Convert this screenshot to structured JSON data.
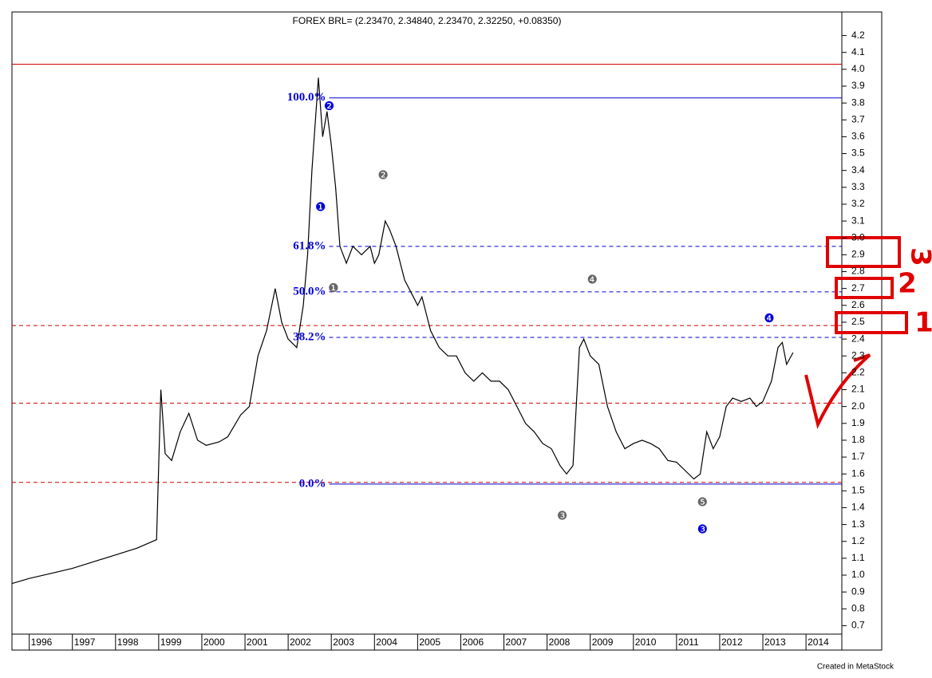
{
  "chart_data": {
    "type": "line",
    "title": "FOREX BRL= (2.23470, 2.34840, 2.23470, 2.32250, +0.08350)",
    "footer": "Created in MetaStock",
    "xlim": [
      1995.6,
      2014.83
    ],
    "ylim": [
      0.65,
      4.34
    ],
    "xticks": [
      1996,
      1997,
      1998,
      1999,
      2000,
      2001,
      2002,
      2003,
      2004,
      2005,
      2006,
      2007,
      2008,
      2009,
      2010,
      2011,
      2012,
      2013,
      2014
    ],
    "yticks": [
      0.7,
      0.8,
      0.9,
      {
        "value": 1,
        "label": "1.0"
      },
      1.1,
      1.2,
      1.3,
      1.4,
      1.5,
      1.6,
      1.7,
      1.8,
      1.9,
      {
        "value": 2,
        "label": "2.0"
      },
      2.1,
      2.2,
      2.3,
      2.4,
      2.5,
      2.6,
      2.7,
      2.8,
      2.9,
      {
        "value": 3,
        "label": "3.0"
      },
      3.1,
      3.2,
      3.3,
      3.4,
      3.5,
      3.6,
      3.7,
      3.8,
      3.9,
      {
        "value": 4,
        "label": "4.0"
      },
      4.1,
      4.2
    ],
    "series": [
      {
        "name": "BRL",
        "color": "#000000",
        "x": [
          1995.6,
          1996,
          1996.5,
          1997,
          1997.5,
          1998,
          1998.5,
          1998.95,
          1999.05,
          1999.15,
          1999.3,
          1999.5,
          1999.7,
          1999.9,
          2000.1,
          2000.4,
          2000.6,
          2000.9,
          2001.1,
          2001.3,
          2001.5,
          2001.7,
          2001.85,
          2002.0,
          2002.2,
          2002.35,
          2002.45,
          2002.55,
          2002.7,
          2002.8,
          2002.9,
          2003.0,
          2003.1,
          2003.2,
          2003.35,
          2003.5,
          2003.7,
          2003.9,
          2004.0,
          2004.1,
          2004.25,
          2004.35,
          2004.5,
          2004.7,
          2004.9,
          2005.0,
          2005.1,
          2005.3,
          2005.5,
          2005.7,
          2005.9,
          2006.1,
          2006.3,
          2006.5,
          2006.7,
          2006.9,
          2007.1,
          2007.3,
          2007.5,
          2007.7,
          2007.9,
          2008.1,
          2008.3,
          2008.45,
          2008.6,
          2008.75,
          2008.85,
          2009.0,
          2009.2,
          2009.4,
          2009.6,
          2009.8,
          2010.0,
          2010.2,
          2010.4,
          2010.6,
          2010.8,
          2011.0,
          2011.2,
          2011.4,
          2011.55,
          2011.7,
          2011.85,
          2012.0,
          2012.15,
          2012.3,
          2012.5,
          2012.7,
          2012.85,
          2013.0,
          2013.2,
          2013.35,
          2013.45,
          2013.55,
          2013.7
        ],
        "values": [
          0.95,
          0.98,
          1.01,
          1.04,
          1.08,
          1.12,
          1.16,
          1.21,
          2.1,
          1.72,
          1.68,
          1.85,
          1.96,
          1.8,
          1.77,
          1.79,
          1.82,
          1.95,
          2.0,
          2.3,
          2.45,
          2.7,
          2.5,
          2.4,
          2.35,
          2.6,
          2.9,
          3.4,
          3.95,
          3.6,
          3.75,
          3.55,
          3.3,
          2.95,
          2.85,
          2.95,
          2.9,
          2.95,
          2.85,
          2.9,
          3.1,
          3.05,
          2.95,
          2.75,
          2.65,
          2.6,
          2.65,
          2.45,
          2.35,
          2.3,
          2.3,
          2.2,
          2.15,
          2.2,
          2.15,
          2.15,
          2.1,
          2.0,
          1.9,
          1.85,
          1.78,
          1.75,
          1.65,
          1.6,
          1.65,
          2.35,
          2.4,
          2.3,
          2.25,
          2.0,
          1.85,
          1.75,
          1.78,
          1.8,
          1.78,
          1.75,
          1.68,
          1.67,
          1.62,
          1.57,
          1.6,
          1.85,
          1.75,
          1.82,
          2.0,
          2.05,
          2.03,
          2.05,
          2.0,
          2.03,
          2.15,
          2.35,
          2.38,
          2.25,
          2.32
        ]
      }
    ],
    "hlines": [
      {
        "value": 4.03,
        "color": "#cc0000",
        "style": "solid"
      },
      {
        "value": 2.48,
        "color": "#cc0000",
        "style": "dashed"
      },
      {
        "value": 2.02,
        "color": "#cc0000",
        "style": "dashed"
      },
      {
        "value": 1.55,
        "color": "#cc0000",
        "style": "dashed"
      },
      {
        "value": 3.83,
        "color": "#0000cc",
        "style": "solid",
        "start": 2002.95,
        "label": "100.0%"
      },
      {
        "value": 2.95,
        "color": "#0000cc",
        "style": "dashed",
        "start": 2002.95,
        "label": "61.8%"
      },
      {
        "value": 2.68,
        "color": "#0000cc",
        "style": "dashed",
        "start": 2002.95,
        "label": "50.0%"
      },
      {
        "value": 2.41,
        "color": "#0000cc",
        "style": "dashed",
        "start": 2002.95,
        "label": "38.2%"
      },
      {
        "value": 1.54,
        "color": "#0000cc",
        "style": "solid",
        "start": 2002.95,
        "label": "0.0%"
      }
    ],
    "annotations": [
      {
        "text": "❷",
        "x": 2002.95,
        "y": 3.78,
        "color": "#0000dd"
      },
      {
        "text": "❶",
        "x": 2002.75,
        "y": 3.18,
        "color": "#0000dd"
      },
      {
        "text": "❷",
        "x": 2004.2,
        "y": 3.37,
        "color": "#666666"
      },
      {
        "text": "❶",
        "x": 2003.05,
        "y": 2.7,
        "color": "#666666"
      },
      {
        "text": "❹",
        "x": 2009.05,
        "y": 2.75,
        "color": "#666666"
      },
      {
        "text": "❹",
        "x": 2013.15,
        "y": 2.52,
        "color": "#0000dd"
      },
      {
        "text": "❸",
        "x": 2008.35,
        "y": 1.35,
        "color": "#666666"
      },
      {
        "text": "❺",
        "x": 2011.6,
        "y": 1.43,
        "color": "#666666"
      },
      {
        "text": "❸",
        "x": 2011.6,
        "y": 1.27,
        "color": "#0000dd"
      }
    ],
    "handwritten": [
      "3",
      "2",
      "1"
    ]
  }
}
